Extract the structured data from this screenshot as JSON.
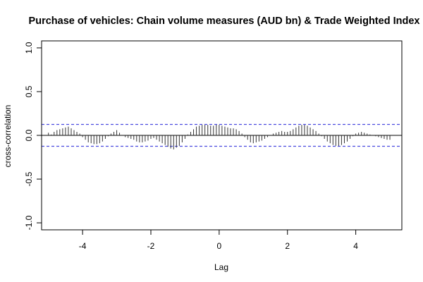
{
  "chart_data": {
    "type": "bar",
    "subtype": "cross-correlation",
    "title": "Purchase of vehicles: Chain volume measures (AUD bn) & Trade Weighted Index",
    "xlabel": "Lag",
    "ylabel": "cross-correlation",
    "xlim": [
      -5.2,
      5.35
    ],
    "ylim": [
      -1.08,
      1.08
    ],
    "x_ticks": [
      -4,
      -2,
      0,
      2,
      4
    ],
    "x_tick_labels": [
      "-4",
      "-2",
      "0",
      "2",
      "4"
    ],
    "y_ticks": [
      -1.0,
      -0.5,
      0.0,
      0.5,
      1.0
    ],
    "y_tick_labels": [
      "-1.0",
      "-0.5",
      "0.0",
      "0.5",
      "1.0"
    ],
    "confidence_limit": 0.125,
    "zero_line_color": "#000000",
    "confidence_line_color": "#4a4adf",
    "bar_color": "#333333",
    "lag_step": 0.0833,
    "lags": [
      -5.0,
      -4.917,
      -4.833,
      -4.75,
      -4.667,
      -4.583,
      -4.5,
      -4.417,
      -4.333,
      -4.25,
      -4.167,
      -4.083,
      -4.0,
      -3.917,
      -3.833,
      -3.75,
      -3.667,
      -3.583,
      -3.5,
      -3.417,
      -3.333,
      -3.25,
      -3.167,
      -3.083,
      -3.0,
      -2.917,
      -2.833,
      -2.75,
      -2.667,
      -2.583,
      -2.5,
      -2.417,
      -2.333,
      -2.25,
      -2.167,
      -2.083,
      -2.0,
      -1.917,
      -1.833,
      -1.75,
      -1.667,
      -1.583,
      -1.5,
      -1.417,
      -1.333,
      -1.25,
      -1.167,
      -1.083,
      -1.0,
      -0.917,
      -0.833,
      -0.75,
      -0.667,
      -0.583,
      -0.5,
      -0.417,
      -0.333,
      -0.25,
      -0.167,
      -0.083,
      0.0,
      0.083,
      0.167,
      0.25,
      0.333,
      0.417,
      0.5,
      0.583,
      0.667,
      0.75,
      0.833,
      0.917,
      1.0,
      1.083,
      1.167,
      1.25,
      1.333,
      1.417,
      1.5,
      1.583,
      1.667,
      1.75,
      1.833,
      1.917,
      2.0,
      2.083,
      2.167,
      2.25,
      2.333,
      2.417,
      2.5,
      2.583,
      2.667,
      2.75,
      2.833,
      2.917,
      3.0,
      3.083,
      3.167,
      3.25,
      3.333,
      3.417,
      3.5,
      3.583,
      3.667,
      3.75,
      3.833,
      3.917,
      4.0,
      4.083,
      4.167,
      4.25,
      4.333,
      4.417,
      4.5,
      4.583,
      4.667,
      4.75,
      4.833,
      4.917,
      5.0
    ],
    "values": [
      0.03,
      0.01,
      0.04,
      0.06,
      0.07,
      0.08,
      0.09,
      0.1,
      0.08,
      0.06,
      0.04,
      0.02,
      -0.02,
      -0.05,
      -0.08,
      -0.09,
      -0.1,
      -0.1,
      -0.09,
      -0.07,
      -0.04,
      -0.01,
      0.02,
      0.04,
      0.06,
      0.03,
      0.0,
      -0.02,
      -0.03,
      -0.04,
      -0.05,
      -0.07,
      -0.08,
      -0.08,
      -0.07,
      -0.06,
      -0.04,
      -0.03,
      -0.05,
      -0.07,
      -0.09,
      -0.11,
      -0.13,
      -0.15,
      -0.16,
      -0.14,
      -0.12,
      -0.08,
      -0.04,
      0.01,
      0.04,
      0.07,
      0.1,
      0.11,
      0.12,
      0.12,
      0.12,
      0.11,
      0.11,
      0.12,
      0.12,
      0.11,
      0.1,
      0.09,
      0.08,
      0.08,
      0.07,
      0.05,
      0.02,
      -0.02,
      -0.05,
      -0.08,
      -0.09,
      -0.08,
      -0.07,
      -0.06,
      -0.04,
      -0.02,
      0.0,
      0.02,
      0.03,
      0.04,
      0.05,
      0.04,
      0.04,
      0.05,
      0.07,
      0.09,
      0.11,
      0.12,
      0.12,
      0.11,
      0.09,
      0.07,
      0.05,
      0.02,
      -0.01,
      -0.04,
      -0.07,
      -0.09,
      -0.11,
      -0.12,
      -0.12,
      -0.11,
      -0.09,
      -0.07,
      -0.04,
      -0.01,
      0.02,
      0.03,
      0.04,
      0.03,
      0.02,
      0.01,
      0.0,
      -0.01,
      -0.02,
      -0.03,
      -0.04,
      -0.05,
      -0.05
    ]
  }
}
